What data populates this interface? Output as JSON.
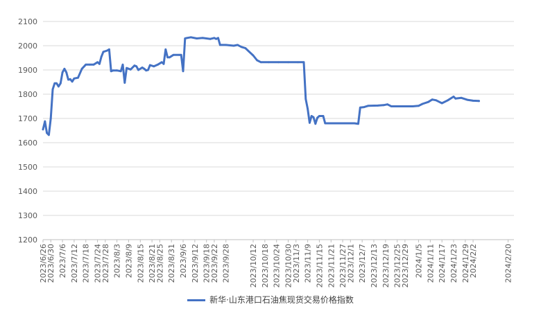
{
  "chart_data": {
    "type": "line",
    "title": "",
    "xlabel": "",
    "ylabel": "",
    "ylim": [
      1200,
      2100
    ],
    "yticks": [
      1200,
      1300,
      1400,
      1500,
      1600,
      1700,
      1800,
      1900,
      2000,
      2100
    ],
    "grid": "horizontal",
    "legend_position": "bottom",
    "color": "#4472c4",
    "x_start": "2023/6/26",
    "x_end": "2024/2/23",
    "x_tick_labels": [
      "2023/6/26",
      "2023/6/30",
      "2023/7/6",
      "2023/7/12",
      "2023/7/18",
      "2023/7/24",
      "2023/7/28",
      "2023/8/3",
      "2023/8/9",
      "2023/8/15",
      "2023/8/21",
      "2023/8/25",
      "2023/8/31",
      "2023/9/6",
      "2023/9/12",
      "2023/9/18",
      "2023/9/22",
      "2023/9/28",
      "2023/10/12",
      "2023/10/18",
      "2023/10/24",
      "2023/10/30",
      "2023/11/3",
      "2023/11/9",
      "2023/11/15",
      "2023/11/21",
      "2023/11/27",
      "2023/12/1",
      "2023/12/7",
      "2023/12/13",
      "2023/12/19",
      "2023/12/25",
      "2023/12/29",
      "2024/1/5",
      "2024/1/11",
      "2024/1/17",
      "2024/1/23",
      "2024/1/29",
      "2024/2/2",
      "2024/2/20"
    ],
    "series": [
      {
        "name": "新华·山东港口石油焦现货交易价格指数",
        "points": [
          [
            "2023/6/26",
            1655
          ],
          [
            "2023/6/27",
            1688
          ],
          [
            "2023/6/28",
            1640
          ],
          [
            "2023/6/29",
            1632
          ],
          [
            "2023/6/30",
            1700
          ],
          [
            "2023/7/1",
            1820
          ],
          [
            "2023/7/2",
            1845
          ],
          [
            "2023/7/3",
            1845
          ],
          [
            "2023/7/4",
            1832
          ],
          [
            "2023/7/5",
            1845
          ],
          [
            "2023/7/6",
            1890
          ],
          [
            "2023/7/7",
            1905
          ],
          [
            "2023/7/8",
            1890
          ],
          [
            "2023/7/9",
            1860
          ],
          [
            "2023/7/10",
            1862
          ],
          [
            "2023/7/11",
            1852
          ],
          [
            "2023/7/12",
            1865
          ],
          [
            "2023/7/14",
            1868
          ],
          [
            "2023/7/16",
            1905
          ],
          [
            "2023/7/18",
            1922
          ],
          [
            "2023/7/20",
            1922
          ],
          [
            "2023/7/22",
            1922
          ],
          [
            "2023/7/24",
            1932
          ],
          [
            "2023/7/25",
            1925
          ],
          [
            "2023/7/26",
            1955
          ],
          [
            "2023/7/27",
            1975
          ],
          [
            "2023/7/29",
            1980
          ],
          [
            "2023/7/30",
            1985
          ],
          [
            "2023/7/31",
            1895
          ],
          [
            "2023/8/1",
            1898
          ],
          [
            "2023/8/3",
            1898
          ],
          [
            "2023/8/5",
            1895
          ],
          [
            "2023/8/6",
            1922
          ],
          [
            "2023/8/7",
            1847
          ],
          [
            "2023/8/8",
            1908
          ],
          [
            "2023/8/10",
            1902
          ],
          [
            "2023/8/12",
            1918
          ],
          [
            "2023/8/13",
            1915
          ],
          [
            "2023/8/14",
            1900
          ],
          [
            "2023/8/16",
            1910
          ],
          [
            "2023/8/17",
            1905
          ],
          [
            "2023/8/18",
            1898
          ],
          [
            "2023/8/19",
            1900
          ],
          [
            "2023/8/20",
            1920
          ],
          [
            "2023/8/22",
            1915
          ],
          [
            "2023/8/24",
            1922
          ],
          [
            "2023/8/26",
            1932
          ],
          [
            "2023/8/27",
            1925
          ],
          [
            "2023/8/28",
            1985
          ],
          [
            "2023/8/29",
            1952
          ],
          [
            "2023/8/30",
            1952
          ],
          [
            "2023/9/1",
            1962
          ],
          [
            "2023/9/4",
            1962
          ],
          [
            "2023/9/5",
            1962
          ],
          [
            "2023/9/6",
            1895
          ],
          [
            "2023/9/7",
            2030
          ],
          [
            "2023/9/8",
            2032
          ],
          [
            "2023/9/10",
            2035
          ],
          [
            "2023/9/13",
            2030
          ],
          [
            "2023/9/16",
            2032
          ],
          [
            "2023/9/20",
            2028
          ],
          [
            "2023/9/22",
            2032
          ],
          [
            "2023/9/23",
            2028
          ],
          [
            "2023/9/24",
            2032
          ],
          [
            "2023/9/25",
            2003
          ],
          [
            "2023/9/28",
            2003
          ],
          [
            "2023/10/2",
            2000
          ],
          [
            "2023/10/4",
            2003
          ],
          [
            "2023/10/6",
            1995
          ],
          [
            "2023/10/8",
            1990
          ],
          [
            "2023/10/10",
            1975
          ],
          [
            "2023/10/12",
            1960
          ],
          [
            "2023/10/14",
            1940
          ],
          [
            "2023/10/16",
            1932
          ],
          [
            "2023/10/20",
            1932
          ],
          [
            "2023/10/25",
            1932
          ],
          [
            "2023/10/30",
            1932
          ],
          [
            "2023/11/4",
            1932
          ],
          [
            "2023/11/7",
            1932
          ],
          [
            "2023/11/8",
            1780
          ],
          [
            "2023/11/9",
            1740
          ],
          [
            "2023/11/10",
            1682
          ],
          [
            "2023/11/11",
            1710
          ],
          [
            "2023/11/12",
            1705
          ],
          [
            "2023/11/13",
            1678
          ],
          [
            "2023/11/14",
            1703
          ],
          [
            "2023/11/15",
            1710
          ],
          [
            "2023/11/17",
            1710
          ],
          [
            "2023/11/18",
            1680
          ],
          [
            "2023/11/22",
            1680
          ],
          [
            "2023/11/28",
            1680
          ],
          [
            "2023/12/3",
            1680
          ],
          [
            "2023/12/5",
            1678
          ],
          [
            "2023/12/6",
            1745
          ],
          [
            "2023/12/8",
            1747
          ],
          [
            "2023/12/10",
            1752
          ],
          [
            "2023/12/15",
            1753
          ],
          [
            "2023/12/18",
            1755
          ],
          [
            "2023/12/20",
            1758
          ],
          [
            "2023/12/22",
            1750
          ],
          [
            "2023/12/25",
            1750
          ],
          [
            "2023/12/29",
            1750
          ],
          [
            "2024/1/2",
            1750
          ],
          [
            "2024/1/5",
            1752
          ],
          [
            "2024/1/7",
            1760
          ],
          [
            "2024/1/10",
            1768
          ],
          [
            "2024/1/12",
            1778
          ],
          [
            "2024/1/14",
            1775
          ],
          [
            "2024/1/17",
            1763
          ],
          [
            "2024/1/20",
            1775
          ],
          [
            "2024/1/23",
            1790
          ],
          [
            "2024/1/24",
            1782
          ],
          [
            "2024/1/27",
            1785
          ],
          [
            "2024/1/30",
            1777
          ],
          [
            "2024/2/2",
            1773
          ],
          [
            "2024/2/5",
            1772
          ]
        ]
      }
    ]
  }
}
